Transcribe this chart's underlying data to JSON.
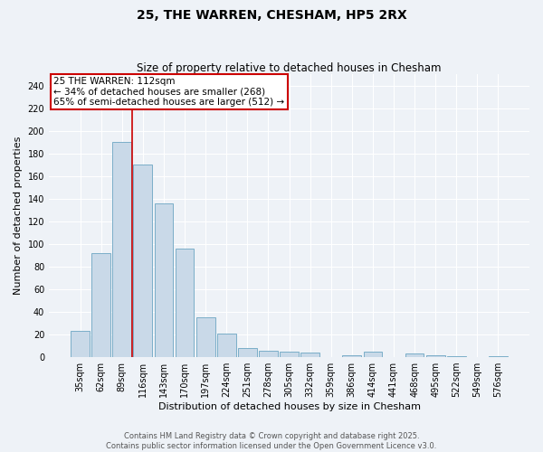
{
  "title": "25, THE WARREN, CHESHAM, HP5 2RX",
  "subtitle": "Size of property relative to detached houses in Chesham",
  "xlabel": "Distribution of detached houses by size in Chesham",
  "ylabel": "Number of detached properties",
  "categories": [
    "35sqm",
    "62sqm",
    "89sqm",
    "116sqm",
    "143sqm",
    "170sqm",
    "197sqm",
    "224sqm",
    "251sqm",
    "278sqm",
    "305sqm",
    "332sqm",
    "359sqm",
    "386sqm",
    "414sqm",
    "441sqm",
    "468sqm",
    "495sqm",
    "522sqm",
    "549sqm",
    "576sqm"
  ],
  "values": [
    23,
    92,
    190,
    170,
    136,
    96,
    35,
    21,
    8,
    6,
    5,
    4,
    0,
    2,
    5,
    0,
    3,
    2,
    1,
    0,
    1
  ],
  "bar_color": "#c9d9e8",
  "bar_edge_color": "#7aaec8",
  "property_line_x": 2.5,
  "annotation_text": "25 THE WARREN: 112sqm\n← 34% of detached houses are smaller (268)\n65% of semi-detached houses are larger (512) →",
  "annotation_box_color": "#ffffff",
  "annotation_box_edge_color": "#cc0000",
  "vline_color": "#cc0000",
  "ylim": [
    0,
    250
  ],
  "yticks": [
    0,
    20,
    40,
    60,
    80,
    100,
    120,
    140,
    160,
    180,
    200,
    220,
    240
  ],
  "footer_line1": "Contains HM Land Registry data © Crown copyright and database right 2025.",
  "footer_line2": "Contains public sector information licensed under the Open Government Licence v3.0.",
  "bg_color": "#eef2f7",
  "grid_color": "#ffffff",
  "title_fontsize": 10,
  "subtitle_fontsize": 8.5,
  "xlabel_fontsize": 8,
  "ylabel_fontsize": 8,
  "tick_fontsize": 7,
  "footer_fontsize": 6,
  "annotation_fontsize": 7.5
}
